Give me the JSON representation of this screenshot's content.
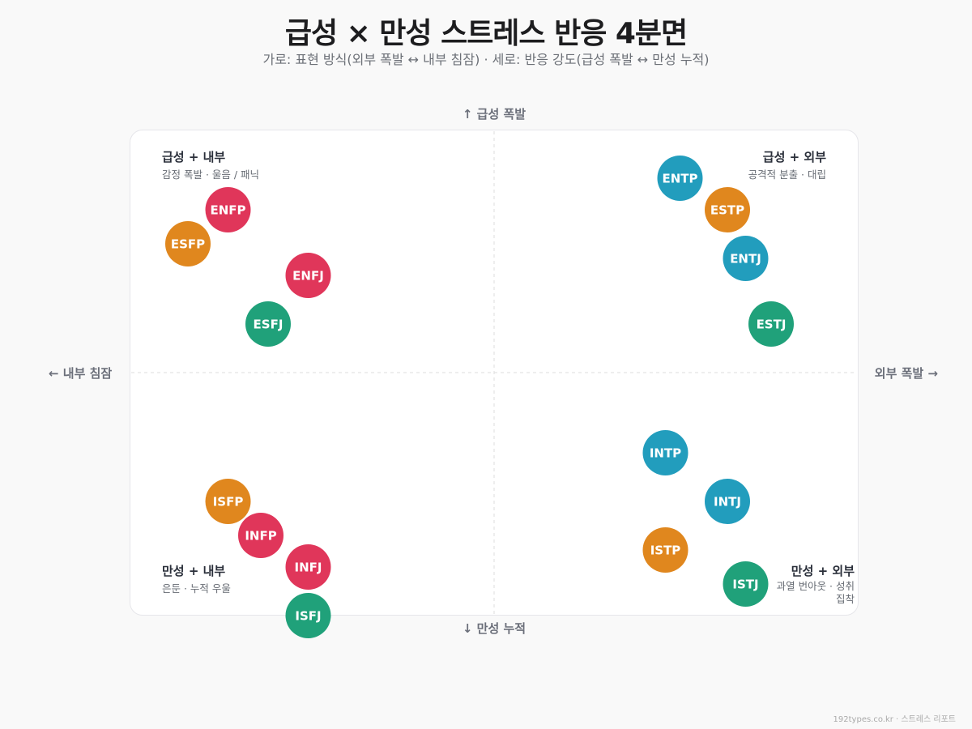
{
  "title": "급성 × 만성 스트레스 반응 4분면",
  "subtitle": "가로: 표현 방식(외부 폭발 ↔ 내부 침잠) · 세로: 반응 강도(급성 폭발 ↔ 만성 누적)",
  "footer": "192types.co.kr · 스트레스 리포트",
  "chart_data": {
    "type": "scatter",
    "title": "급성 × 만성 스트레스 반응 4분면",
    "axis_labels": {
      "top": "↑ 급성 폭발",
      "bottom": "↓ 만성 누적",
      "left": "← 내부 침잠",
      "right": "외부 폭발 →"
    },
    "xlim": [
      -10,
      10
    ],
    "ylim": [
      -10,
      10
    ],
    "grid": false,
    "quadrants": {
      "top_left": {
        "title": "급성 + 내부",
        "desc": "감정 폭발 · 울음 / 패닉"
      },
      "top_right": {
        "title": "급성 + 외부",
        "desc": "공격적 분출 · 대립"
      },
      "bottom_left": {
        "title": "만성 + 내부",
        "desc": "은둔 · 누적 우울"
      },
      "bottom_right": {
        "title": "만성 + 외부",
        "desc": "과열 번아웃 · 성취 집착"
      }
    },
    "group_colors": {
      "NF": "#e0365a",
      "SP": "#e0871e",
      "NT": "#229dbd",
      "SJ": "#20a17a"
    },
    "points": [
      {
        "label": "ENFP",
        "group": "NF",
        "x": -7.3,
        "y": 6.7
      },
      {
        "label": "ESFP",
        "group": "SP",
        "x": -8.4,
        "y": 5.3
      },
      {
        "label": "ENFJ",
        "group": "NF",
        "x": -5.1,
        "y": 4.0
      },
      {
        "label": "ESFJ",
        "group": "SJ",
        "x": -6.2,
        "y": 2.0
      },
      {
        "label": "ENTP",
        "group": "NT",
        "x": 5.1,
        "y": 8.0
      },
      {
        "label": "ESTP",
        "group": "SP",
        "x": 6.4,
        "y": 6.7
      },
      {
        "label": "ENTJ",
        "group": "NT",
        "x": 6.9,
        "y": 4.7
      },
      {
        "label": "ESTJ",
        "group": "SJ",
        "x": 7.6,
        "y": 2.0
      },
      {
        "label": "INTP",
        "group": "NT",
        "x": 4.7,
        "y": -3.3
      },
      {
        "label": "INTJ",
        "group": "NT",
        "x": 6.4,
        "y": -5.3
      },
      {
        "label": "ISTP",
        "group": "SP",
        "x": 4.7,
        "y": -7.3
      },
      {
        "label": "ISTJ",
        "group": "SJ",
        "x": 6.9,
        "y": -8.7
      },
      {
        "label": "ISFP",
        "group": "SP",
        "x": -7.3,
        "y": -5.3
      },
      {
        "label": "INFP",
        "group": "NF",
        "x": -6.4,
        "y": -6.7
      },
      {
        "label": "INFJ",
        "group": "NF",
        "x": -5.1,
        "y": -8.0
      },
      {
        "label": "ISFJ",
        "group": "SJ",
        "x": -5.1,
        "y": -10.0
      }
    ]
  }
}
